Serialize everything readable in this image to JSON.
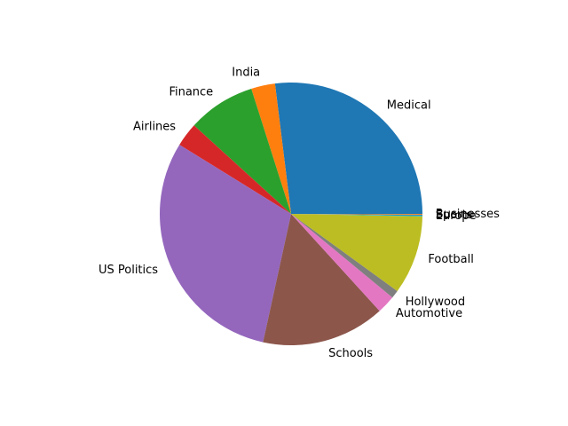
{
  "chart_data": {
    "type": "pie",
    "title": "",
    "start_angle_deg": 0,
    "direction": "counterclockwise",
    "slices": [
      {
        "label": "Medical",
        "value": 27.5,
        "color": "#1f77b4"
      },
      {
        "label": "India",
        "value": 3.0,
        "color": "#ff7f0e"
      },
      {
        "label": "Finance",
        "value": 8.5,
        "color": "#2ca02c"
      },
      {
        "label": "Airlines",
        "value": 3.0,
        "color": "#d62728"
      },
      {
        "label": "US Politics",
        "value": 31.0,
        "color": "#9467bd"
      },
      {
        "label": "Schools",
        "value": 15.5,
        "color": "#8c564b"
      },
      {
        "label": "Automotive",
        "value": 2.3,
        "color": "#e377c2"
      },
      {
        "label": "Hollywood",
        "value": 1.0,
        "color": "#7f7f7f"
      },
      {
        "label": "Football",
        "value": 9.9,
        "color": "#bcbd22"
      },
      {
        "label": "Europe",
        "value": 0.1,
        "color": "#17becf"
      },
      {
        "label": "Sports",
        "value": 0.1,
        "color": "#1f77b4"
      },
      {
        "label": "Businesses",
        "value": 0.1,
        "color": "#ff7f0e"
      }
    ]
  }
}
